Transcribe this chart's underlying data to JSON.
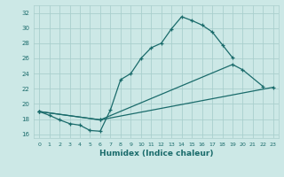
{
  "title": "",
  "xlabel": "Humidex (Indice chaleur)",
  "bg_color": "#cce8e6",
  "grid_color": "#aacfcd",
  "line_color": "#1a6b6b",
  "xlim": [
    -0.5,
    23.5
  ],
  "ylim": [
    15.5,
    33.0
  ],
  "xticks": [
    0,
    1,
    2,
    3,
    4,
    5,
    6,
    7,
    8,
    9,
    10,
    11,
    12,
    13,
    14,
    15,
    16,
    17,
    18,
    19,
    20,
    21,
    22,
    23
  ],
  "yticks": [
    16,
    18,
    20,
    22,
    24,
    26,
    28,
    30,
    32
  ],
  "line1_x": [
    0,
    1,
    2,
    3,
    4,
    5,
    6,
    7,
    8,
    9,
    10,
    11,
    12,
    13,
    14,
    15,
    16,
    17,
    18,
    19
  ],
  "line1_y": [
    19.0,
    18.5,
    17.9,
    17.4,
    17.2,
    16.5,
    16.4,
    19.2,
    23.2,
    24.0,
    26.0,
    27.4,
    28.0,
    29.9,
    31.5,
    31.0,
    30.4,
    29.5,
    27.8,
    26.1
  ],
  "line2_x": [
    0,
    6,
    19,
    20,
    22
  ],
  "line2_y": [
    19.0,
    17.9,
    25.2,
    24.5,
    22.3
  ],
  "line3_x": [
    0,
    6,
    23
  ],
  "line3_y": [
    19.0,
    17.9,
    22.2
  ]
}
